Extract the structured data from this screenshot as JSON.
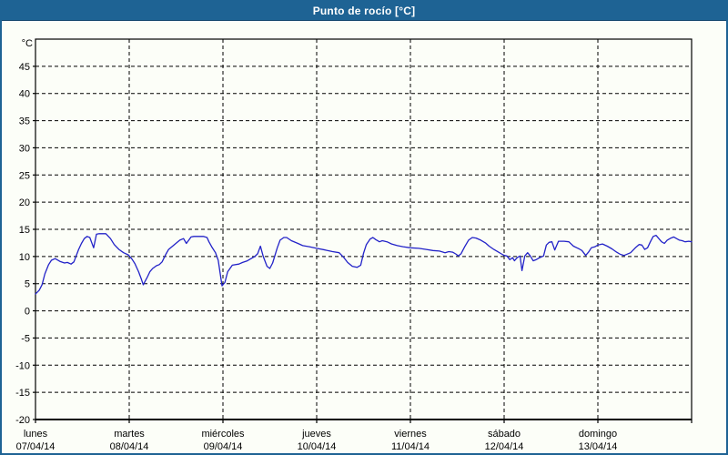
{
  "window": {
    "title": "Punto de rocío [°C]"
  },
  "colors": {
    "frame_blue": "#1e6394",
    "frame_edge_dark": "#16486e",
    "background": "#fcfef8",
    "grid_black": "#000000",
    "series_blue": "#2222c8"
  },
  "chart_data": {
    "type": "line",
    "title": "Punto de rocío [°C]",
    "unit_label": "°C",
    "grid": "dashed",
    "legend": "none",
    "y_axis": {
      "min": -20,
      "max": 50,
      "tick_step": 5,
      "ticks": [
        45,
        40,
        35,
        30,
        25,
        20,
        15,
        10,
        5,
        0,
        -5,
        -10,
        -15,
        -20
      ]
    },
    "x_axis": {
      "day_count": 7,
      "days": [
        {
          "name": "lunes",
          "date": "07/04/14"
        },
        {
          "name": "martes",
          "date": "08/04/14"
        },
        {
          "name": "miércoles",
          "date": "09/04/14"
        },
        {
          "name": "jueves",
          "date": "10/04/14"
        },
        {
          "name": "viernes",
          "date": "11/04/14"
        },
        {
          "name": "sábado",
          "date": "12/04/14"
        },
        {
          "name": "domingo",
          "date": "13/04/14"
        }
      ]
    },
    "series": [
      {
        "name": "Punto de rocío",
        "color": "#2222c8",
        "points": [
          [
            0.0,
            3.1
          ],
          [
            0.04,
            3.8
          ],
          [
            0.07,
            4.8
          ],
          [
            0.1,
            6.8
          ],
          [
            0.14,
            8.5
          ],
          [
            0.17,
            9.3
          ],
          [
            0.21,
            9.6
          ],
          [
            0.26,
            9.1
          ],
          [
            0.31,
            8.8
          ],
          [
            0.34,
            8.9
          ],
          [
            0.38,
            8.6
          ],
          [
            0.41,
            9.0
          ],
          [
            0.46,
            11.3
          ],
          [
            0.49,
            12.4
          ],
          [
            0.52,
            13.3
          ],
          [
            0.55,
            13.7
          ],
          [
            0.58,
            13.5
          ],
          [
            0.62,
            11.6
          ],
          [
            0.65,
            14.1
          ],
          [
            0.68,
            14.2
          ],
          [
            0.75,
            14.2
          ],
          [
            0.8,
            13.3
          ],
          [
            0.84,
            12.2
          ],
          [
            0.89,
            11.3
          ],
          [
            0.94,
            10.7
          ],
          [
            0.99,
            10.3
          ],
          [
            1.03,
            9.5
          ],
          [
            1.06,
            8.7
          ],
          [
            1.1,
            7.2
          ],
          [
            1.13,
            5.8
          ],
          [
            1.15,
            4.8
          ],
          [
            1.19,
            6.1
          ],
          [
            1.22,
            7.2
          ],
          [
            1.25,
            7.8
          ],
          [
            1.29,
            8.3
          ],
          [
            1.32,
            8.5
          ],
          [
            1.35,
            9.0
          ],
          [
            1.39,
            10.4
          ],
          [
            1.42,
            11.3
          ],
          [
            1.49,
            12.3
          ],
          [
            1.54,
            13.0
          ],
          [
            1.58,
            13.3
          ],
          [
            1.61,
            12.4
          ],
          [
            1.66,
            13.6
          ],
          [
            1.69,
            13.7
          ],
          [
            1.79,
            13.7
          ],
          [
            1.83,
            13.5
          ],
          [
            1.85,
            12.7
          ],
          [
            1.88,
            11.8
          ],
          [
            1.92,
            10.7
          ],
          [
            1.95,
            9.3
          ],
          [
            1.99,
            4.6
          ],
          [
            2.02,
            5.2
          ],
          [
            2.05,
            7.2
          ],
          [
            2.1,
            8.4
          ],
          [
            2.17,
            8.6
          ],
          [
            2.21,
            8.9
          ],
          [
            2.26,
            9.2
          ],
          [
            2.31,
            9.7
          ],
          [
            2.34,
            10.0
          ],
          [
            2.37,
            10.5
          ],
          [
            2.4,
            11.9
          ],
          [
            2.43,
            10.0
          ],
          [
            2.47,
            8.2
          ],
          [
            2.5,
            7.8
          ],
          [
            2.53,
            8.8
          ],
          [
            2.58,
            11.6
          ],
          [
            2.61,
            13.0
          ],
          [
            2.65,
            13.5
          ],
          [
            2.68,
            13.5
          ],
          [
            2.73,
            12.9
          ],
          [
            2.8,
            12.4
          ],
          [
            2.85,
            12.0
          ],
          [
            2.92,
            11.8
          ],
          [
            3.0,
            11.5
          ],
          [
            3.09,
            11.2
          ],
          [
            3.17,
            10.9
          ],
          [
            3.24,
            10.7
          ],
          [
            3.29,
            9.8
          ],
          [
            3.33,
            8.9
          ],
          [
            3.38,
            8.2
          ],
          [
            3.43,
            8.0
          ],
          [
            3.47,
            8.4
          ],
          [
            3.5,
            10.6
          ],
          [
            3.53,
            12.2
          ],
          [
            3.57,
            13.2
          ],
          [
            3.6,
            13.5
          ],
          [
            3.63,
            13.1
          ],
          [
            3.67,
            12.7
          ],
          [
            3.7,
            12.9
          ],
          [
            3.75,
            12.7
          ],
          [
            3.8,
            12.3
          ],
          [
            3.86,
            12.0
          ],
          [
            3.92,
            11.8
          ],
          [
            4.0,
            11.6
          ],
          [
            4.09,
            11.5
          ],
          [
            4.17,
            11.3
          ],
          [
            4.24,
            11.1
          ],
          [
            4.31,
            11.0
          ],
          [
            4.37,
            10.7
          ],
          [
            4.41,
            10.9
          ],
          [
            4.45,
            10.8
          ],
          [
            4.49,
            10.4
          ],
          [
            4.51,
            10.1
          ],
          [
            4.54,
            10.5
          ],
          [
            4.58,
            11.8
          ],
          [
            4.62,
            13.0
          ],
          [
            4.66,
            13.5
          ],
          [
            4.7,
            13.4
          ],
          [
            4.75,
            13.0
          ],
          [
            4.8,
            12.5
          ],
          [
            4.84,
            11.9
          ],
          [
            4.89,
            11.3
          ],
          [
            4.94,
            10.8
          ],
          [
            4.98,
            10.4
          ],
          [
            5.0,
            10.2
          ],
          [
            5.03,
            10.1
          ],
          [
            5.06,
            9.4
          ],
          [
            5.09,
            9.8
          ],
          [
            5.11,
            9.2
          ],
          [
            5.14,
            9.8
          ],
          [
            5.17,
            10.1
          ],
          [
            5.19,
            7.4
          ],
          [
            5.22,
            10.1
          ],
          [
            5.25,
            10.7
          ],
          [
            5.28,
            10.1
          ],
          [
            5.31,
            9.2
          ],
          [
            5.34,
            9.4
          ],
          [
            5.38,
            9.8
          ],
          [
            5.42,
            10.1
          ],
          [
            5.45,
            12.1
          ],
          [
            5.48,
            12.6
          ],
          [
            5.51,
            12.7
          ],
          [
            5.54,
            11.2
          ],
          [
            5.58,
            12.8
          ],
          [
            5.64,
            12.8
          ],
          [
            5.69,
            12.7
          ],
          [
            5.74,
            11.9
          ],
          [
            5.8,
            11.4
          ],
          [
            5.83,
            11.1
          ],
          [
            5.87,
            10.2
          ],
          [
            5.9,
            10.8
          ],
          [
            5.93,
            11.6
          ],
          [
            5.97,
            11.8
          ],
          [
            6.0,
            12.1
          ],
          [
            6.05,
            12.3
          ],
          [
            6.1,
            11.9
          ],
          [
            6.15,
            11.4
          ],
          [
            6.2,
            10.8
          ],
          [
            6.24,
            10.4
          ],
          [
            6.28,
            10.2
          ],
          [
            6.35,
            10.7
          ],
          [
            6.4,
            11.6
          ],
          [
            6.44,
            12.2
          ],
          [
            6.47,
            12.1
          ],
          [
            6.5,
            11.3
          ],
          [
            6.53,
            11.6
          ],
          [
            6.56,
            12.7
          ],
          [
            6.59,
            13.7
          ],
          [
            6.62,
            13.9
          ],
          [
            6.68,
            12.7
          ],
          [
            6.71,
            12.4
          ],
          [
            6.74,
            13.0
          ],
          [
            6.78,
            13.4
          ],
          [
            6.81,
            13.6
          ],
          [
            6.84,
            13.3
          ],
          [
            6.87,
            13.0
          ],
          [
            6.9,
            12.9
          ],
          [
            6.93,
            12.7
          ],
          [
            6.97,
            12.8
          ],
          [
            7.0,
            12.7
          ]
        ]
      }
    ]
  }
}
